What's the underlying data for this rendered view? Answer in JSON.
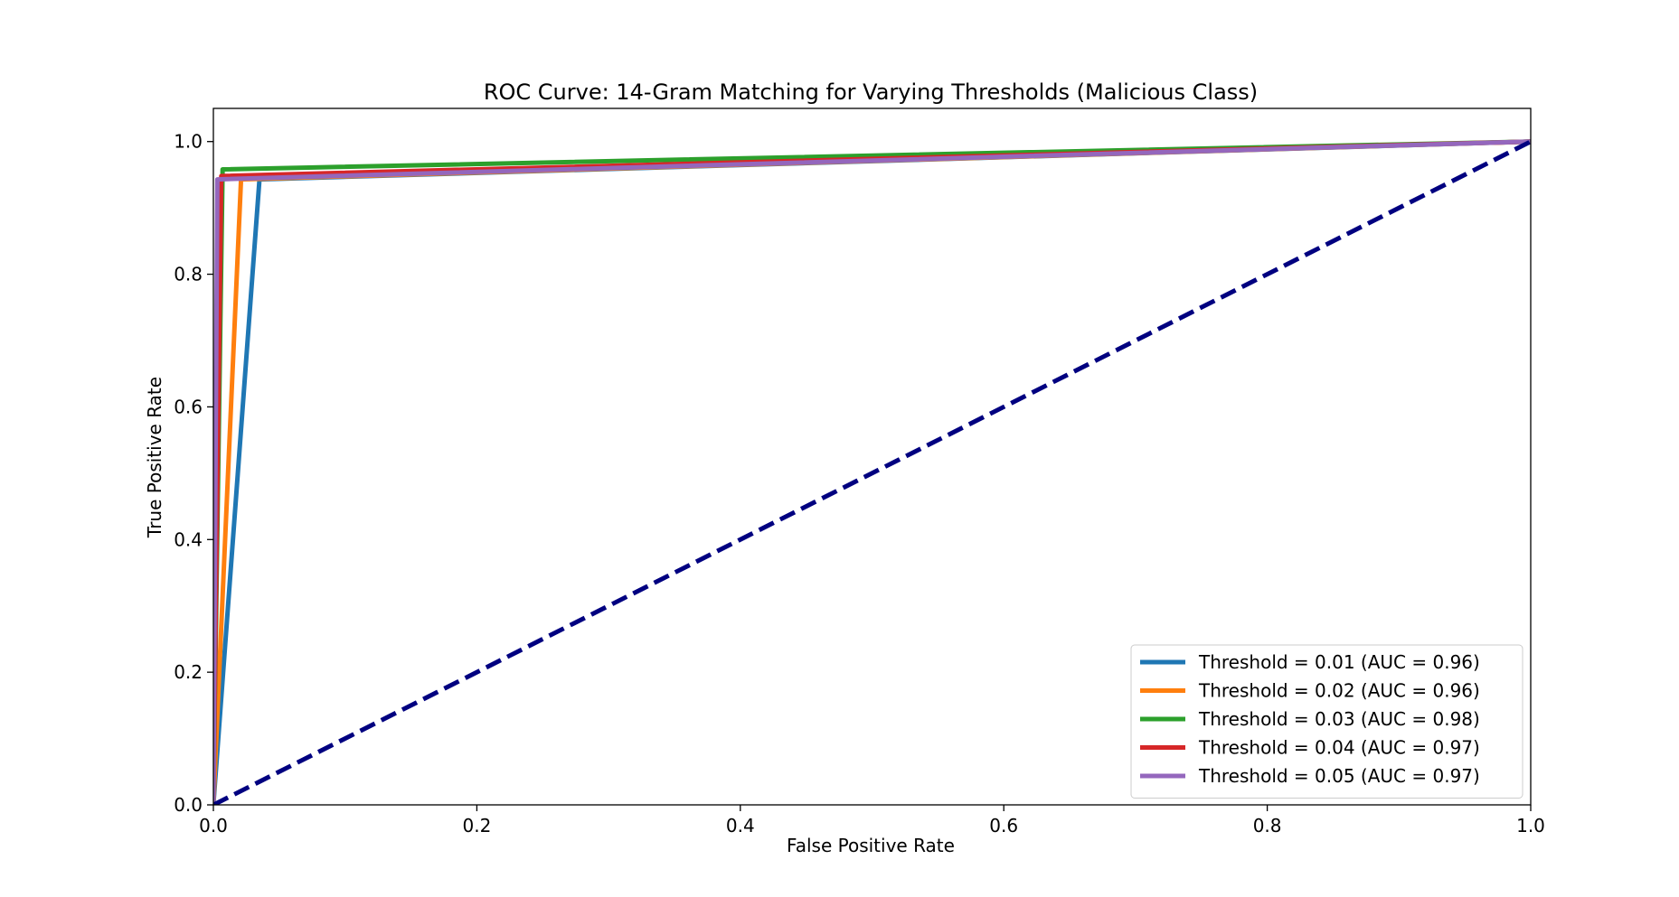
{
  "chart_data": {
    "type": "line",
    "title": "ROC Curve: 14-Gram Matching for Varying Thresholds (Malicious Class)",
    "xlabel": "False Positive Rate",
    "ylabel": "True Positive Rate",
    "xlim": [
      0.0,
      1.0
    ],
    "ylim": [
      0.0,
      1.05
    ],
    "x_ticks": [
      0.0,
      0.2,
      0.4,
      0.6,
      0.8,
      1.0
    ],
    "y_ticks": [
      0.0,
      0.2,
      0.4,
      0.6,
      0.8,
      1.0
    ],
    "x_tick_labels": [
      "0.0",
      "0.2",
      "0.4",
      "0.6",
      "0.8",
      "1.0"
    ],
    "y_tick_labels": [
      "0.0",
      "0.2",
      "0.4",
      "0.6",
      "0.8",
      "1.0"
    ],
    "grid": false,
    "legend_placement": "lower-right",
    "series": [
      {
        "name": "Threshold = 0.01 (AUC = 0.96)",
        "color": "#1f77b4",
        "x": [
          0.0,
          0.035,
          1.0
        ],
        "y": [
          0.0,
          0.943,
          1.0
        ]
      },
      {
        "name": "Threshold = 0.02 (AUC = 0.96)",
        "color": "#ff7f0e",
        "x": [
          0.0,
          0.021,
          1.0
        ],
        "y": [
          0.0,
          0.943,
          1.0
        ]
      },
      {
        "name": "Threshold = 0.03 (AUC = 0.98)",
        "color": "#2ca02c",
        "x": [
          0.0,
          0.007,
          1.0
        ],
        "y": [
          0.0,
          0.958,
          1.0
        ]
      },
      {
        "name": "Threshold = 0.04 (AUC = 0.97)",
        "color": "#d62728",
        "x": [
          0.0,
          0.006,
          1.0
        ],
        "y": [
          0.0,
          0.948,
          1.0
        ]
      },
      {
        "name": "Threshold = 0.05 (AUC = 0.97)",
        "color": "#9467bd",
        "x": [
          0.0,
          0.003,
          1.0
        ],
        "y": [
          0.0,
          0.943,
          1.0
        ]
      }
    ],
    "reference_line": {
      "color": "#000080",
      "style": "dashed",
      "x": [
        0.0,
        1.0
      ],
      "y": [
        0.0,
        1.0
      ]
    }
  }
}
